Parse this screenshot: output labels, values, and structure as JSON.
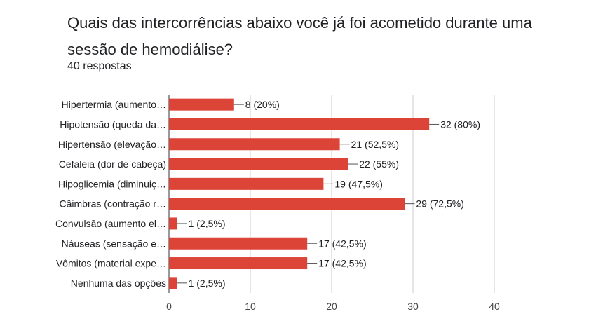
{
  "title": "Quais das intercorrências abaixo você já foi acometido durante uma sessão de hemodiálise?",
  "subtitle": "40 respostas",
  "colors": {
    "bar": "#db4437",
    "grid": "#cccccc",
    "axis": "#333333"
  },
  "chart_data": {
    "type": "bar",
    "orientation": "horizontal",
    "grid": true,
    "xlim": [
      0,
      40
    ],
    "ticks": [
      0,
      10,
      20,
      30,
      40
    ],
    "categories": [
      "Hipertermia (aumento…",
      "Hipotensão (queda da…",
      "Hipertensão (elevação…",
      "Cefaleia (dor de cabeça)",
      "Hipoglicemia (diminuiç…",
      "Câimbras (contração r…",
      "Convulsão (aumento el…",
      "Náuseas (sensação e…",
      "Vômitos (material expe…",
      "Nenhuma das opções"
    ],
    "values": [
      8,
      32,
      21,
      22,
      19,
      29,
      1,
      17,
      17,
      1
    ],
    "data_labels": [
      "8 (20%)",
      "32 (80%)",
      "21 (52,5%)",
      "22 (55%)",
      "19 (47,5%)",
      "29 (72,5%)",
      "1 (2,5%)",
      "17 (42,5%)",
      "17 (42,5%)",
      "1 (2,5%)"
    ]
  }
}
